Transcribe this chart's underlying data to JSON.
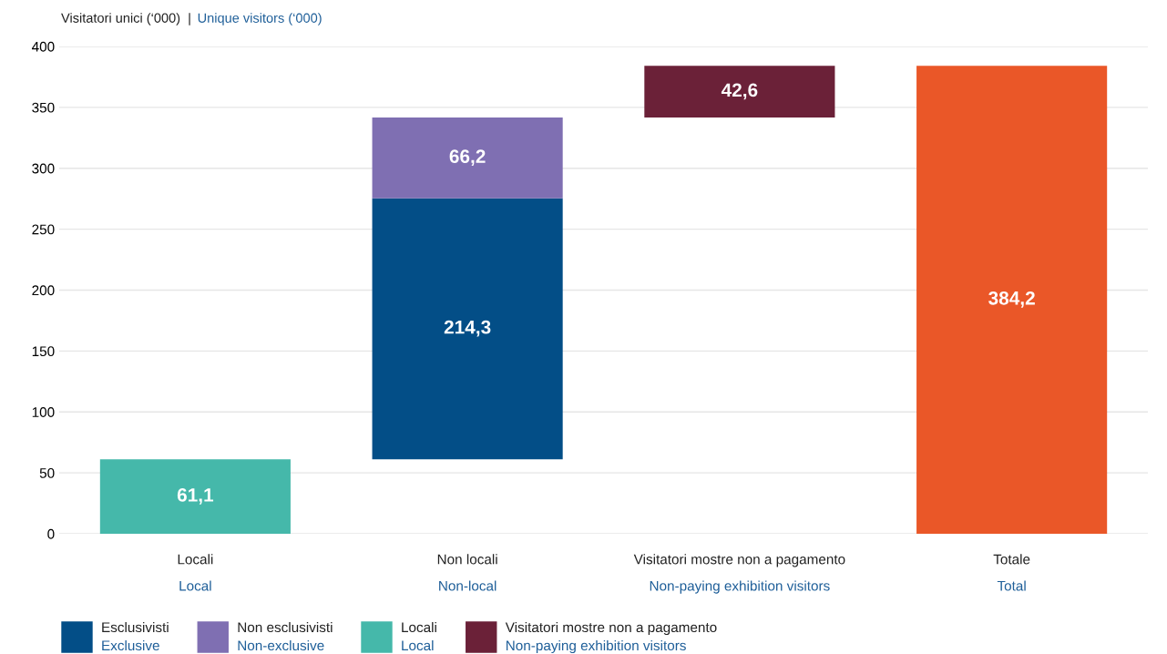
{
  "chart_data": {
    "type": "bar",
    "title": "Visitatori unici (‘000)  |",
    "subtitle": "Unique visitors (‘000)",
    "categories": [
      "Locali\nLocal",
      "Non locali\nNon-local",
      "Visitatori mostre non a pagamento\nNon-paying exhibition visitors",
      "Totale\nTotal"
    ],
    "series": [
      {
        "name": "Esclusivisti\nExclusive",
        "color": "#034e87",
        "values": [
          null,
          214.3,
          null,
          null
        ],
        "base": [
          null,
          61.1,
          null,
          null
        ],
        "value_labels": [
          null,
          "214,3",
          null,
          null
        ]
      },
      {
        "name": "Non esclusivisti\nNon-exclusive",
        "color": "#7f6fb2",
        "values": [
          null,
          66.2,
          null,
          null
        ],
        "base": [
          null,
          275.4,
          null,
          null
        ],
        "value_labels": [
          null,
          "66,2",
          null,
          null
        ]
      },
      {
        "name": "Locali\nLocal",
        "color": "#45b8aa",
        "values": [
          61.1,
          null,
          null,
          null
        ],
        "base": [
          0,
          null,
          null,
          null
        ],
        "value_labels": [
          "61,1",
          null,
          null,
          null
        ]
      },
      {
        "name": "Visitatori mostre non a pagamento\nNon-paying exhibition visitors",
        "color": "#6b2138",
        "values": [
          null,
          null,
          42.6,
          null
        ],
        "base": [
          null,
          null,
          341.6,
          null
        ],
        "value_labels": [
          null,
          null,
          "42,6",
          null
        ]
      },
      {
        "color": "#ea5728",
        "values": [
          null,
          null,
          null,
          384.2
        ],
        "base": [
          null,
          null,
          null,
          0
        ],
        "value_labels": [
          null,
          null,
          null,
          "384,2"
        ]
      }
    ],
    "ylim": [
      0,
      400
    ],
    "yticks": [
      0,
      50,
      100,
      150,
      200,
      250,
      300,
      350,
      400
    ],
    "grid": "y",
    "legend": "bottom left"
  }
}
